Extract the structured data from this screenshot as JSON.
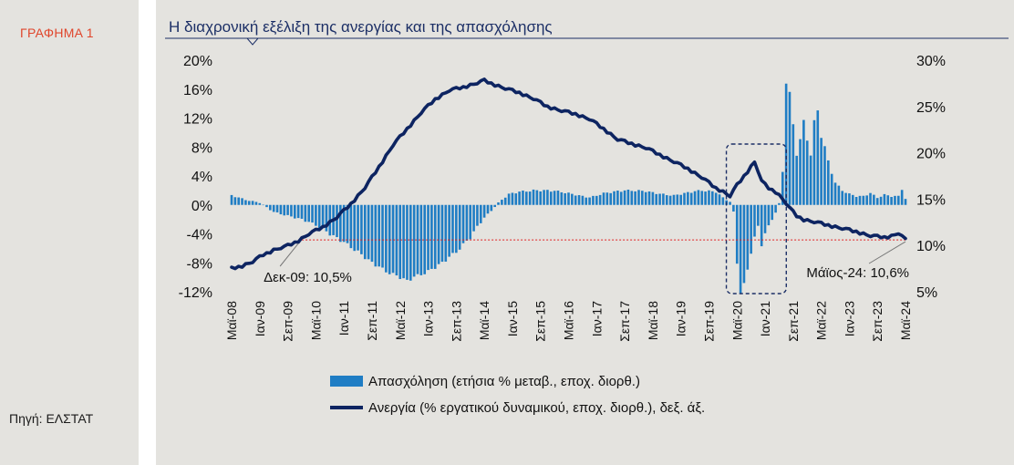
{
  "left": {
    "graph_label": "ΓΡΑΦΗΜΑ 1",
    "source": "Πηγή: ΕΛΣΤΑΤ"
  },
  "colors": {
    "bars": "#1f7dc4",
    "line": "#0d2461",
    "title": "#1c2f66",
    "ref_line": "#e02020",
    "highlight": "#1c2f66"
  },
  "chart_data": {
    "type": "bar+line",
    "title": "Η διαχρονική εξέλιξη της ανεργίας και της απασχόλησης",
    "x_start": "2008-05",
    "x_end": "2024-05",
    "x_tick_labels": [
      "Μαϊ-08",
      "Ιαν-09",
      "Σεπ-09",
      "Μαϊ-10",
      "Ιαν-11",
      "Σεπ-11",
      "Μαϊ-12",
      "Ιαν-13",
      "Σεπ-13",
      "Μαϊ-14",
      "Ιαν-15",
      "Σεπ-15",
      "Μαϊ-16",
      "Ιαν-17",
      "Σεπ-17",
      "Μαϊ-18",
      "Ιαν-19",
      "Σεπ-19",
      "Μαϊ-20",
      "Ιαν-21",
      "Σεπ-21",
      "Μαϊ-22",
      "Ιαν-23",
      "Σεπ-23",
      "Μαϊ-24"
    ],
    "y_left": {
      "min": -12,
      "max": 20,
      "ticks": [
        -12,
        -8,
        -4,
        0,
        4,
        8,
        12,
        16,
        20
      ],
      "tick_labels": [
        "-12%",
        "-8%",
        "-4%",
        "0%",
        "4%",
        "8%",
        "12%",
        "16%",
        "20%"
      ]
    },
    "y_right": {
      "min": 5,
      "max": 30,
      "ticks": [
        5,
        10,
        15,
        20,
        25,
        30
      ],
      "tick_labels": [
        "5%",
        "10%",
        "15%",
        "20%",
        "25%",
        "30%"
      ]
    },
    "series": [
      {
        "name": "Απασχόληση (ετήσια % μεταβ., εποχ. διορθ.)",
        "type": "bar",
        "axis": "left",
        "anchors": [
          [
            0,
            1.3
          ],
          [
            4,
            0.7
          ],
          [
            8,
            0.3
          ],
          [
            9,
            0.0
          ],
          [
            12,
            -1.0
          ],
          [
            16,
            -1.5
          ],
          [
            20,
            -2.0
          ],
          [
            24,
            -2.8
          ],
          [
            28,
            -4.0
          ],
          [
            32,
            -5.2
          ],
          [
            36,
            -6.5
          ],
          [
            40,
            -8.0
          ],
          [
            44,
            -9.2
          ],
          [
            48,
            -10.0
          ],
          [
            50,
            -10.5
          ],
          [
            52,
            -10.0
          ],
          [
            56,
            -9.2
          ],
          [
            60,
            -8.0
          ],
          [
            64,
            -6.5
          ],
          [
            68,
            -4.5
          ],
          [
            70,
            -3.0
          ],
          [
            72,
            -1.8
          ],
          [
            74,
            -0.8
          ],
          [
            76,
            0.3
          ],
          [
            79,
            1.5
          ],
          [
            82,
            1.8
          ],
          [
            86,
            2.0
          ],
          [
            90,
            2.0
          ],
          [
            94,
            1.8
          ],
          [
            98,
            1.4
          ],
          [
            102,
            1.0
          ],
          [
            106,
            1.6
          ],
          [
            110,
            1.9
          ],
          [
            114,
            2.0
          ],
          [
            118,
            1.9
          ],
          [
            122,
            1.5
          ],
          [
            126,
            1.3
          ],
          [
            130,
            1.7
          ],
          [
            134,
            2.0
          ],
          [
            138,
            1.8
          ],
          [
            140,
            1.0
          ],
          [
            142,
            0.4
          ],
          [
            143,
            -1.0
          ],
          [
            144,
            -8.0
          ],
          [
            145,
            -12.0
          ],
          [
            146,
            -11.0
          ],
          [
            147,
            -9.0
          ],
          [
            148,
            -6.5
          ],
          [
            149,
            -4.5
          ],
          [
            150,
            -3.0
          ],
          [
            151,
            -5.5
          ],
          [
            152,
            -4.0
          ],
          [
            153,
            -3.0
          ],
          [
            154,
            -2.0
          ],
          [
            155,
            -1.0
          ],
          [
            156,
            0.2
          ],
          [
            157,
            4.5
          ],
          [
            158,
            17.0
          ],
          [
            159,
            15.5
          ],
          [
            160,
            11.0
          ],
          [
            161,
            7.0
          ],
          [
            162,
            9.0
          ],
          [
            163,
            11.5
          ],
          [
            164,
            9.0
          ],
          [
            165,
            7.0
          ],
          [
            166,
            11.5
          ],
          [
            167,
            13.0
          ],
          [
            168,
            9.5
          ],
          [
            169,
            8.0
          ],
          [
            170,
            6.0
          ],
          [
            171,
            4.5
          ],
          [
            172,
            3.0
          ],
          [
            174,
            2.0
          ],
          [
            176,
            1.5
          ],
          [
            178,
            1.2
          ],
          [
            180,
            1.2
          ],
          [
            182,
            1.6
          ],
          [
            184,
            1.0
          ],
          [
            186,
            1.4
          ],
          [
            188,
            1.2
          ],
          [
            190,
            1.2
          ],
          [
            191,
            2.2
          ],
          [
            192,
            0.8
          ]
        ]
      },
      {
        "name": "Ανεργία (% εργατικού δυναμικού, εποχ. διορθ.), δεξ. άξ.",
        "type": "line",
        "axis": "right",
        "anchors": [
          [
            0,
            7.5
          ],
          [
            3,
            7.8
          ],
          [
            6,
            8.2
          ],
          [
            9,
            9.0
          ],
          [
            12,
            9.5
          ],
          [
            15,
            9.8
          ],
          [
            19,
            10.5
          ],
          [
            22,
            11.2
          ],
          [
            26,
            12.0
          ],
          [
            30,
            13.0
          ],
          [
            34,
            14.5
          ],
          [
            38,
            16.2
          ],
          [
            42,
            18.5
          ],
          [
            46,
            20.8
          ],
          [
            50,
            22.6
          ],
          [
            54,
            24.3
          ],
          [
            58,
            25.8
          ],
          [
            62,
            26.7
          ],
          [
            66,
            27.1
          ],
          [
            70,
            27.5
          ],
          [
            72,
            27.8
          ],
          [
            74,
            27.5
          ],
          [
            78,
            26.9
          ],
          [
            82,
            26.5
          ],
          [
            86,
            25.8
          ],
          [
            90,
            25.0
          ],
          [
            94,
            24.5
          ],
          [
            98,
            24.2
          ],
          [
            102,
            23.6
          ],
          [
            106,
            22.6
          ],
          [
            110,
            21.4
          ],
          [
            114,
            21.0
          ],
          [
            118,
            20.5
          ],
          [
            122,
            19.8
          ],
          [
            126,
            19.0
          ],
          [
            130,
            18.3
          ],
          [
            134,
            17.3
          ],
          [
            138,
            16.2
          ],
          [
            140,
            15.8
          ],
          [
            142,
            15.3
          ],
          [
            144,
            16.5
          ],
          [
            147,
            18.0
          ],
          [
            149,
            19.0
          ],
          [
            150,
            18.0
          ],
          [
            151,
            16.9
          ],
          [
            153,
            16.2
          ],
          [
            155,
            15.8
          ],
          [
            157,
            15.0
          ],
          [
            159,
            14.0
          ],
          [
            161,
            13.2
          ],
          [
            163,
            12.8
          ],
          [
            166,
            12.5
          ],
          [
            170,
            12.2
          ],
          [
            174,
            11.8
          ],
          [
            178,
            11.5
          ],
          [
            182,
            11.0
          ],
          [
            186,
            10.9
          ],
          [
            188,
            11.0
          ],
          [
            190,
            11.3
          ],
          [
            192,
            10.6
          ]
        ]
      }
    ],
    "annotations": [
      {
        "text": "Δεκ-09: 10,5%",
        "month": 19,
        "value": 10.5
      },
      {
        "text": "Μάϊος-24: 10,6%",
        "month": 192,
        "value": 10.6
      }
    ],
    "reference_line": {
      "value_right_axis": 10.6
    },
    "highlight_box": {
      "from_month": 142,
      "to_month": 157
    },
    "legend_position": "bottom"
  }
}
